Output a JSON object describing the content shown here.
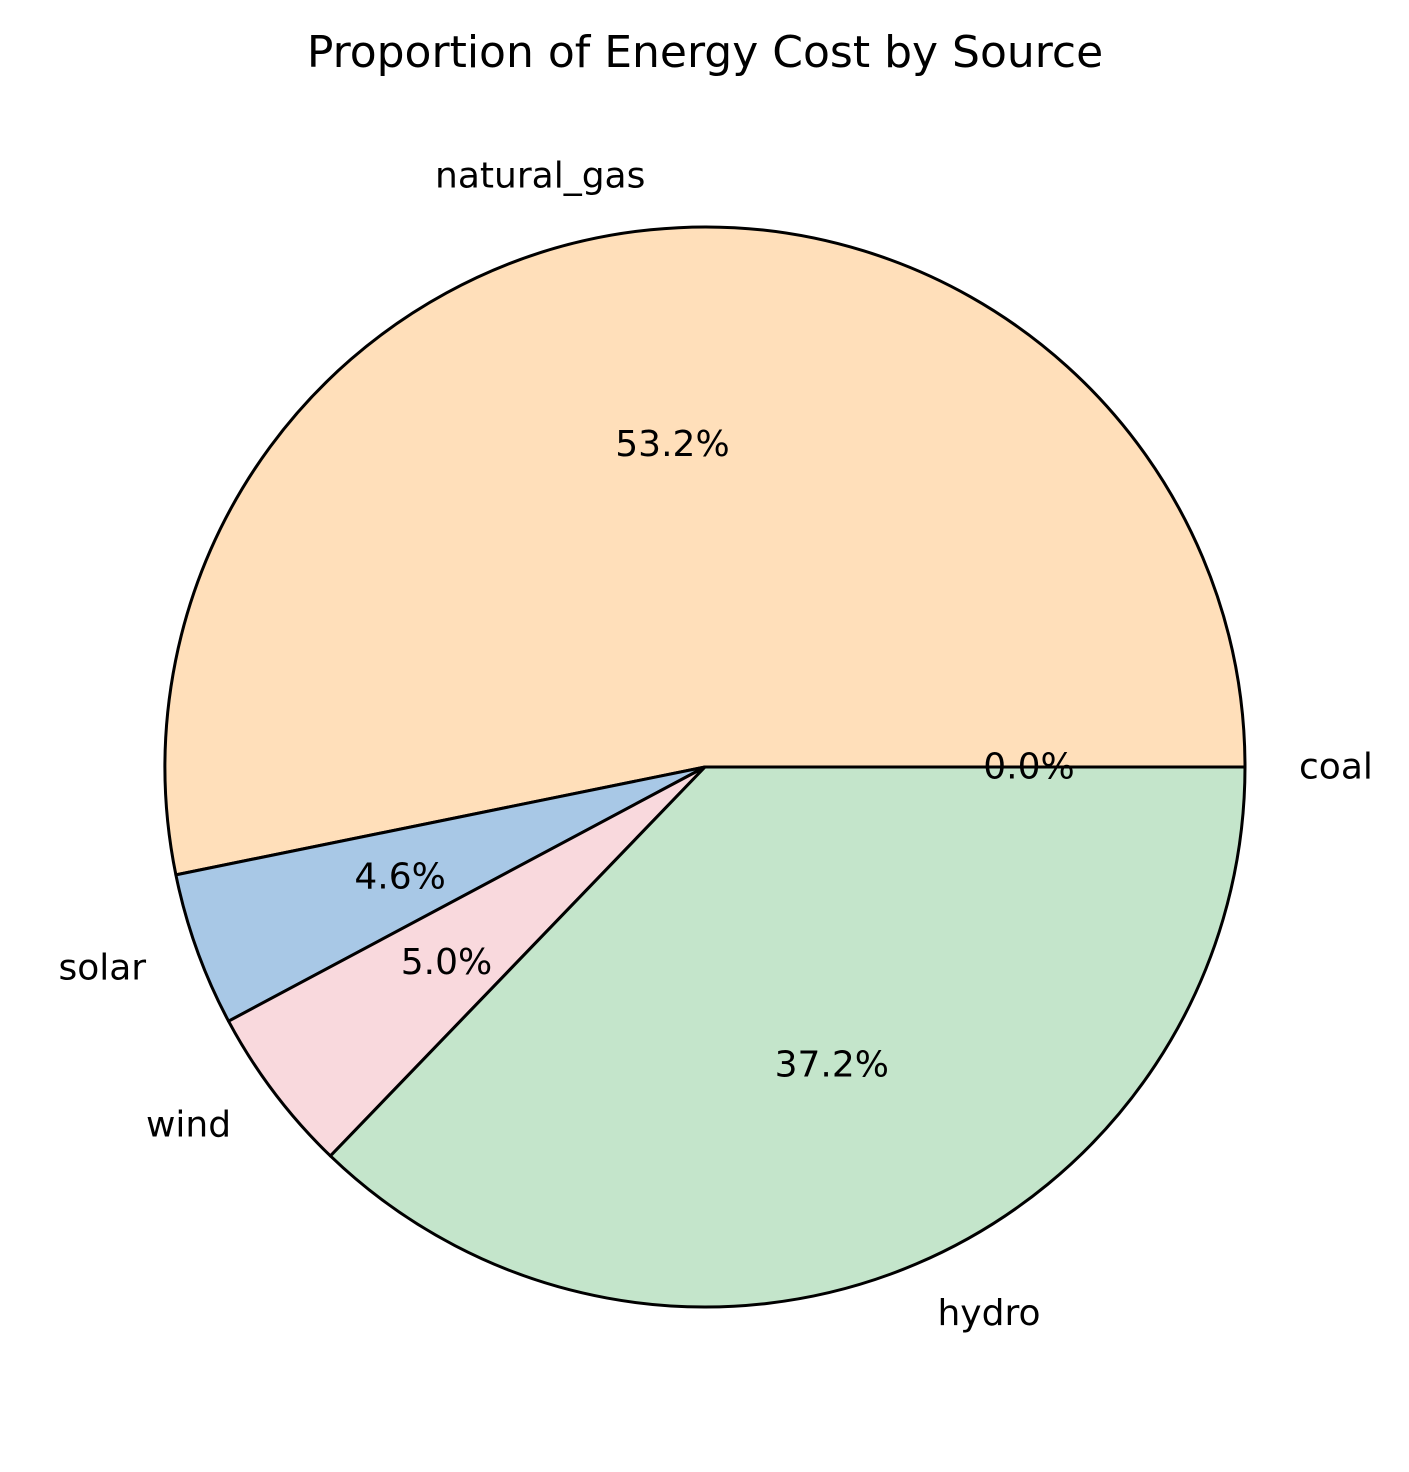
{
  "chart_data": {
    "type": "pie",
    "title": "Proportion of Energy Cost by Source",
    "start_angle_deg": 0,
    "direction": "counterclockwise",
    "slices": [
      {
        "label": "natural_gas",
        "pct_label": "53.2%",
        "value": 53.2,
        "color": "#FFDFBA"
      },
      {
        "label": "solar",
        "pct_label": "4.6%",
        "value": 4.6,
        "color": "#A8C8E6"
      },
      {
        "label": "wind",
        "pct_label": "5.0%",
        "value": 5.0,
        "color": "#F9D9DD"
      },
      {
        "label": "hydro",
        "pct_label": "37.2%",
        "value": 37.2,
        "color": "#C4E5CB"
      },
      {
        "label": "coal",
        "pct_label": "0.0%",
        "value": 0.0,
        "color": "#FFB3BA"
      }
    ]
  }
}
